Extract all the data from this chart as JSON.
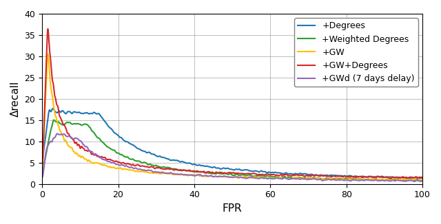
{
  "title": "",
  "xlabel": "FPR",
  "ylabel": "Δrecall",
  "xlim": [
    0,
    100
  ],
  "ylim": [
    0,
    40
  ],
  "xticks": [
    0,
    20,
    40,
    60,
    80,
    100
  ],
  "yticks": [
    0,
    5,
    10,
    15,
    20,
    25,
    30,
    35,
    40
  ],
  "grid": true,
  "lines": [
    {
      "label": "+Degrees",
      "color": "#1f77b4",
      "linewidth": 1.5
    },
    {
      "label": "+Weighted Degrees",
      "color": "#2ca02c",
      "linewidth": 1.5
    },
    {
      "label": "+GW",
      "color": "#ffbf00",
      "linewidth": 1.5
    },
    {
      "label": "+GW+Degrees",
      "color": "#d62728",
      "linewidth": 1.5
    },
    {
      "label": "+GWd (7 days delay)",
      "color": "#9467bd",
      "linewidth": 1.5
    }
  ],
  "figsize": [
    6.4,
    3.26
  ],
  "dpi": 100,
  "legend_loc": "upper right",
  "legend_fontsize": 9,
  "tick_fontsize": 9,
  "label_fontsize": 11
}
